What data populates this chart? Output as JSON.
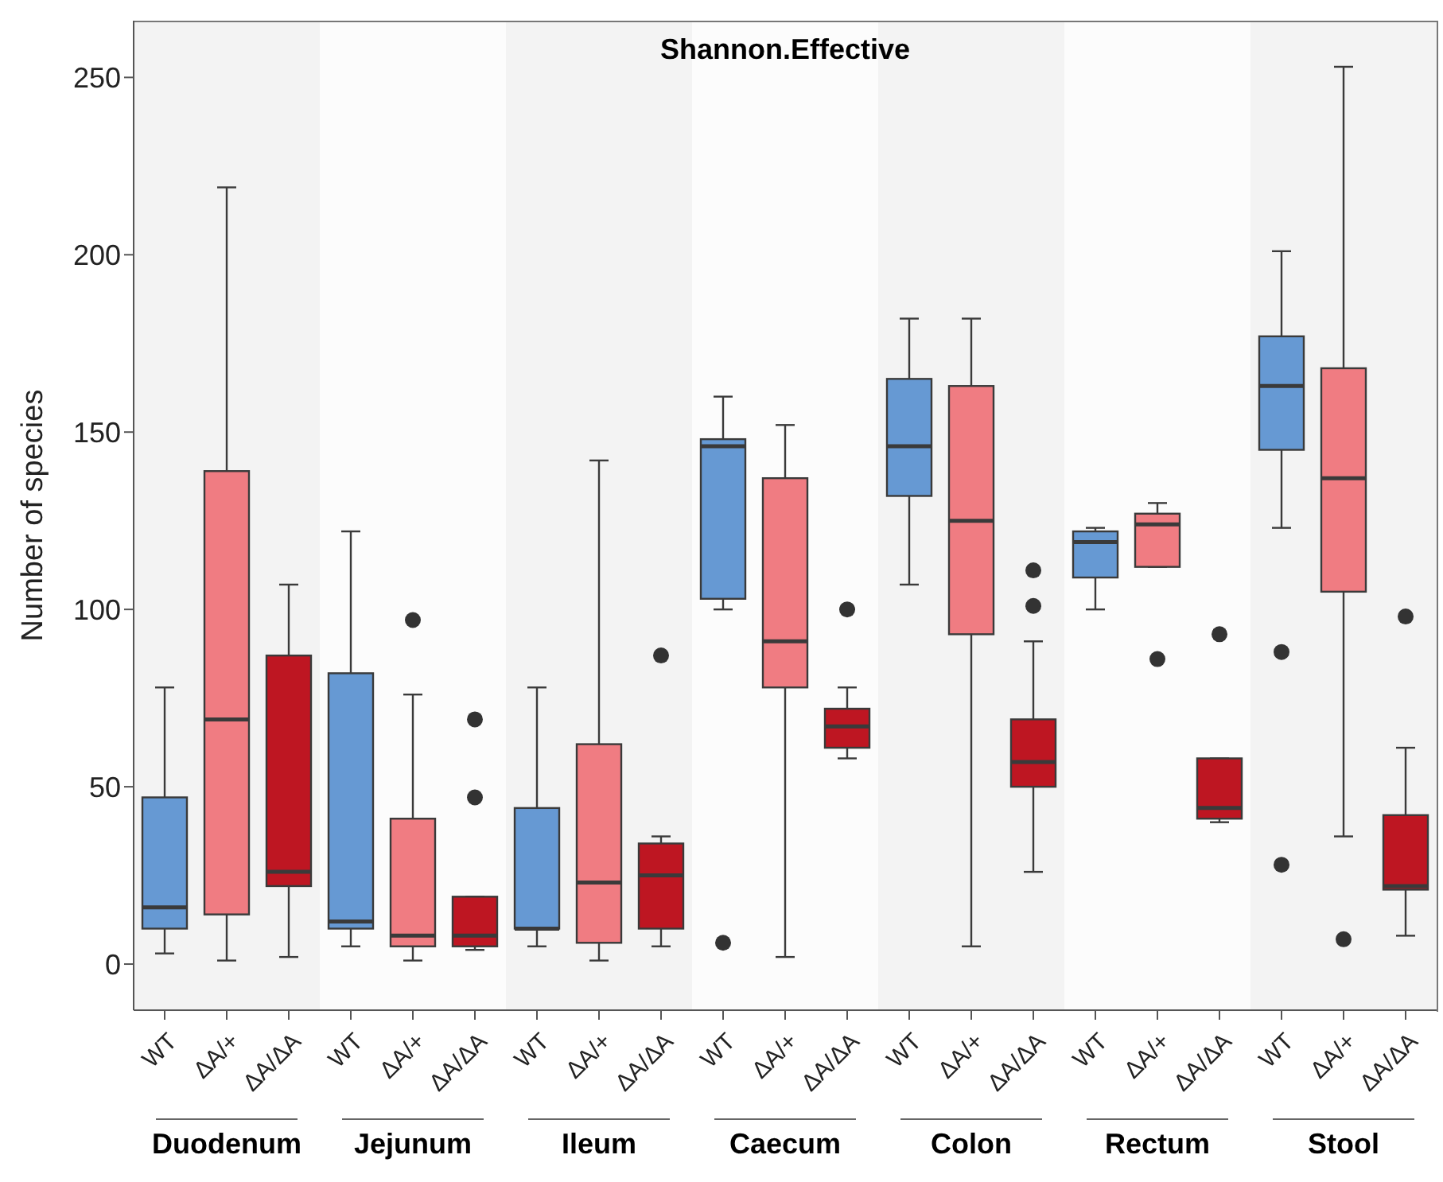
{
  "chart_data": {
    "type": "box",
    "title": "Shannon.Effective",
    "ylabel": "Number of species",
    "categories": [
      "WT",
      "ΔA/+",
      "ΔA/ΔA",
      "WT",
      "ΔA/+",
      "ΔA/ΔA",
      "WT",
      "ΔA/+",
      "ΔA/ΔA",
      "WT",
      "ΔA/+",
      "ΔA/ΔA",
      "WT",
      "ΔA/+",
      "ΔA/ΔA",
      "WT",
      "ΔA/+",
      "ΔA/ΔA",
      "WT",
      "ΔA/+",
      "ΔA/ΔA"
    ],
    "colors": [
      "#6699d3",
      "#f07c82",
      "#be1622",
      "#6699d3",
      "#f07c82",
      "#be1622",
      "#6699d3",
      "#f07c82",
      "#be1622",
      "#6699d3",
      "#f07c82",
      "#be1622",
      "#6699d3",
      "#f07c82",
      "#be1622",
      "#6699d3",
      "#f07c82",
      "#be1622",
      "#6699d3",
      "#f07c82",
      "#be1622"
    ],
    "boxes": [
      {
        "low": 3,
        "q1": 10,
        "median": 16,
        "q3": 47,
        "high": 78
      },
      {
        "low": 1,
        "q1": 14,
        "median": 69,
        "q3": 139,
        "high": 219
      },
      {
        "low": 2,
        "q1": 22,
        "median": 26,
        "q3": 87,
        "high": 107
      },
      {
        "low": 5,
        "q1": 10,
        "median": 12,
        "q3": 82,
        "high": 122
      },
      {
        "low": 1,
        "q1": 5,
        "median": 8,
        "q3": 41,
        "high": 76,
        "outliers": [
          97
        ]
      },
      {
        "low": 4,
        "q1": 5,
        "median": 8,
        "q3": 19,
        "high": 19,
        "outliers": [
          47,
          69
        ]
      },
      {
        "low": 5,
        "q1": 10,
        "median": 10,
        "q3": 44,
        "high": 78
      },
      {
        "low": 1,
        "q1": 6,
        "median": 23,
        "q3": 62,
        "high": 142
      },
      {
        "low": 5,
        "q1": 10,
        "median": 25,
        "q3": 34,
        "high": 36,
        "outliers": [
          87
        ]
      },
      {
        "low": 100,
        "q1": 103,
        "median": 146,
        "q3": 148,
        "high": 160,
        "outliers": [
          6
        ]
      },
      {
        "low": 2,
        "q1": 78,
        "median": 91,
        "q3": 137,
        "high": 152
      },
      {
        "low": 58,
        "q1": 61,
        "median": 67,
        "q3": 72,
        "high": 78,
        "outliers": [
          100
        ]
      },
      {
        "low": 107,
        "q1": 132,
        "median": 146,
        "q3": 165,
        "high": 182
      },
      {
        "low": 5,
        "q1": 93,
        "median": 125,
        "q3": 163,
        "high": 182
      },
      {
        "low": 26,
        "q1": 50,
        "median": 57,
        "q3": 69,
        "high": 91,
        "outliers": [
          101,
          111
        ]
      },
      {
        "low": 100,
        "q1": 109,
        "median": 119,
        "q3": 122,
        "high": 123
      },
      {
        "low": 112,
        "q1": 112,
        "median": 124,
        "q3": 127,
        "high": 130,
        "outliers": [
          86
        ]
      },
      {
        "low": 40,
        "q1": 41,
        "median": 44,
        "q3": 58,
        "high": 58,
        "outliers": [
          93
        ]
      },
      {
        "low": 123,
        "q1": 145,
        "median": 163,
        "q3": 177,
        "high": 201,
        "outliers": [
          28,
          88
        ]
      },
      {
        "low": 36,
        "q1": 105,
        "median": 137,
        "q3": 168,
        "high": 253,
        "outliers": [
          7
        ]
      },
      {
        "low": 8,
        "q1": 21,
        "median": 22,
        "q3": 42,
        "high": 61,
        "outliers": [
          98
        ]
      }
    ],
    "ylim": [
      -13,
      266
    ],
    "yticks": [
      0,
      50,
      100,
      150,
      200,
      250
    ],
    "annotations": [
      "Duodenum",
      "Jejunum",
      "Ileum",
      "Caecum",
      "Colon",
      "Rectum",
      "Stool"
    ]
  }
}
